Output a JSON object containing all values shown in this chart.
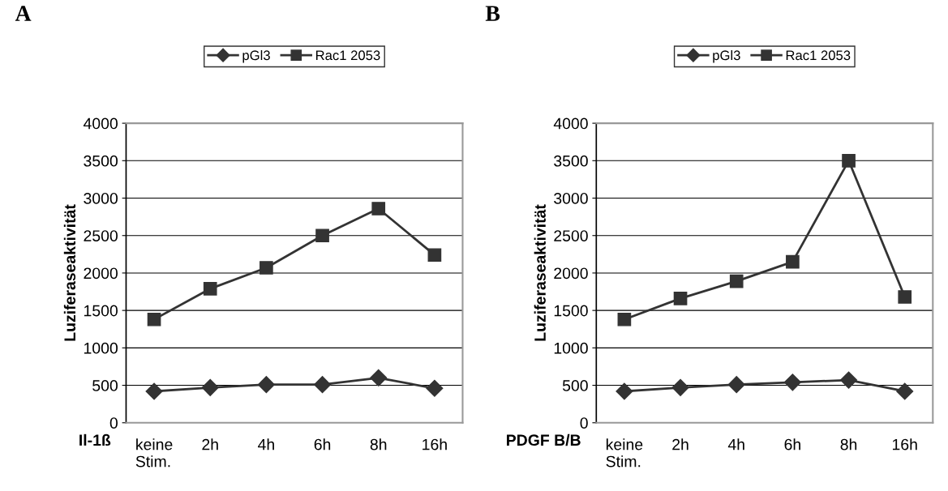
{
  "chart_data": [
    {
      "type": "line",
      "title": "A",
      "xlabel": "Il-1ß",
      "ylabel": "Luziferaseaktivität",
      "categories": [
        "keine\nStim.",
        "2h",
        "4h",
        "6h",
        "8h",
        "16h"
      ],
      "series": [
        {
          "name": "pGl3",
          "color": "#333333",
          "marker": "diamond",
          "values": [
            420,
            470,
            510,
            510,
            600,
            460
          ]
        },
        {
          "name": "Rac1 2053",
          "color": "#333333",
          "marker": "square",
          "values": [
            1380,
            1790,
            2070,
            2500,
            2860,
            2240
          ]
        }
      ],
      "ylim": [
        0,
        4000
      ],
      "yticks": [
        0,
        500,
        1000,
        1500,
        2000,
        2500,
        3000,
        3500,
        4000
      ],
      "grid": "y",
      "legend": "top",
      "line_style": "solid"
    },
    {
      "type": "line",
      "title": "B",
      "xlabel": "PDGF B/B",
      "ylabel": "Luziferaseaktivität",
      "categories": [
        "keine\nStim.",
        "2h",
        "4h",
        "6h",
        "8h",
        "16h"
      ],
      "series": [
        {
          "name": "pGl3",
          "color": "#333333",
          "marker": "diamond",
          "values": [
            420,
            470,
            510,
            540,
            570,
            420
          ]
        },
        {
          "name": "Rac1 2053",
          "color": "#333333",
          "marker": "square",
          "values": [
            1380,
            1660,
            1890,
            2150,
            3500,
            1680
          ]
        }
      ],
      "ylim": [
        0,
        4000
      ],
      "yticks": [
        0,
        500,
        1000,
        1500,
        2000,
        2500,
        3000,
        3500,
        4000
      ],
      "grid": "y",
      "legend": "top",
      "line_style": "solid"
    }
  ]
}
